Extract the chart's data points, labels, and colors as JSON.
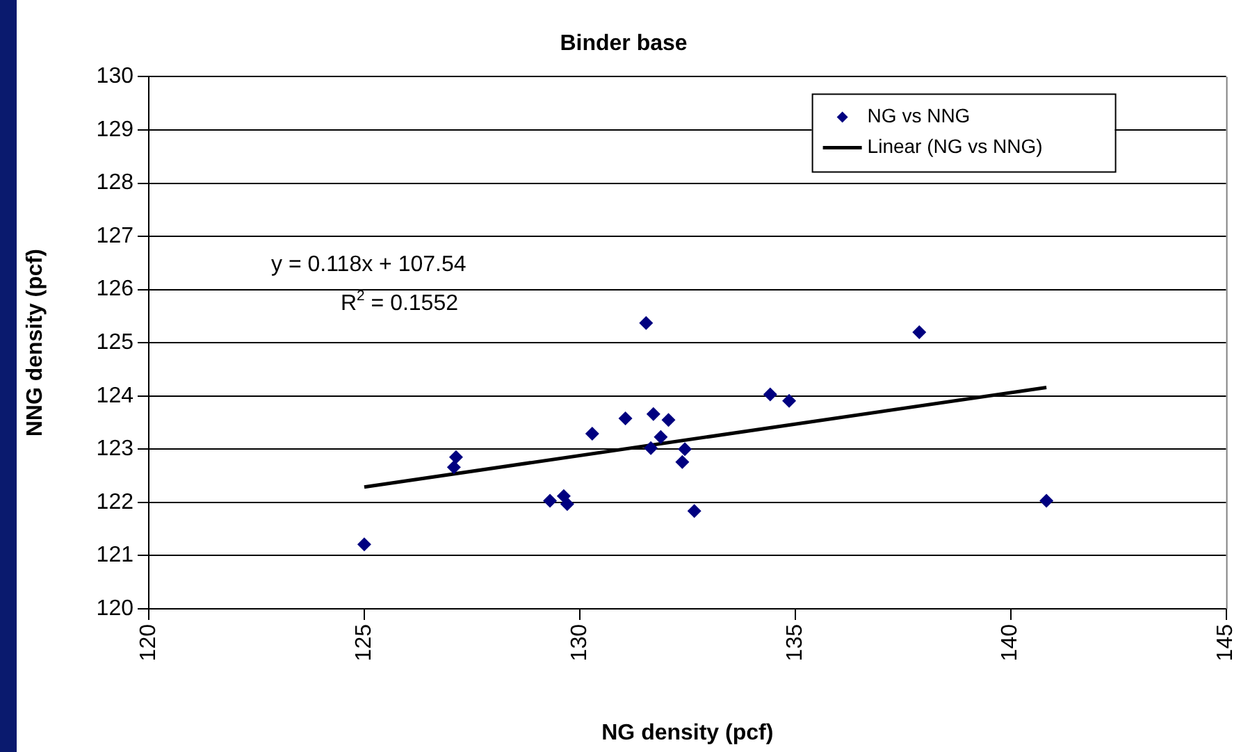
{
  "chart_data": {
    "type": "scatter",
    "title": "Binder base",
    "xlabel": "NG density (pcf)",
    "ylabel": "NNG density (pcf)",
    "xlim": [
      120,
      145
    ],
    "xticks": [
      120,
      125,
      130,
      135,
      140,
      145
    ],
    "ylim": [
      120,
      130
    ],
    "yticks": [
      120,
      121,
      122,
      123,
      124,
      125,
      126,
      127,
      128,
      129,
      130
    ],
    "grid": "y",
    "legend": "top right",
    "marker": "diamond",
    "series": [
      {
        "name": "NG vs NNG",
        "color": "#000080",
        "x": [
          125.0,
          127.13,
          127.08,
          129.31,
          129.63,
          129.71,
          130.29,
          131.06,
          131.54,
          131.71,
          132.06,
          131.88,
          131.65,
          132.44,
          132.38,
          132.66,
          134.42,
          134.86,
          137.88,
          140.83
        ],
        "values": [
          121.21,
          122.85,
          122.66,
          122.03,
          122.12,
          121.97,
          123.29,
          123.58,
          125.37,
          123.66,
          123.55,
          123.23,
          123.02,
          123.0,
          122.76,
          121.84,
          124.03,
          123.91,
          125.2,
          122.03
        ]
      },
      {
        "name": "Linear (NG vs NNG)",
        "type": "line",
        "color": "#000000",
        "line_style": "solid",
        "marker": "none",
        "x": [
          125.0,
          140.83
        ],
        "values": [
          122.29,
          124.16
        ]
      }
    ],
    "annotations": [
      "y = 0.118x + 107.54",
      "R$^{2}$ = 0.1552"
    ]
  }
}
